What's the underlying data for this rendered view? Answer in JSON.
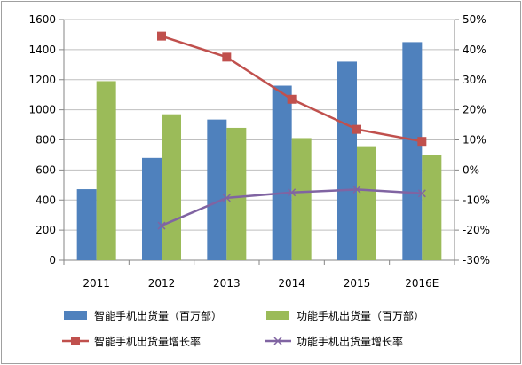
{
  "chart_data": {
    "type": "bar",
    "categories": [
      "2011",
      "2012",
      "2013",
      "2014",
      "2015",
      "2016E"
    ],
    "series": [
      {
        "name": "智能手机出货量（百万部）",
        "kind": "bar",
        "axis": "left",
        "color": "#4f81bd",
        "values": [
          472,
          680,
          935,
          1160,
          1320,
          1450
        ]
      },
      {
        "name": "功能手机出货量（百万部）",
        "kind": "bar",
        "axis": "left",
        "color": "#9bbb59",
        "values": [
          1190,
          970,
          880,
          812,
          758,
          700
        ]
      },
      {
        "name": "智能手机出货量增长率",
        "kind": "line",
        "axis": "right",
        "color": "#c0504d",
        "marker": "square",
        "values": [
          null,
          44.5,
          37.5,
          23.5,
          13.5,
          9.5
        ]
      },
      {
        "name": "功能手机出货量增长率",
        "kind": "line",
        "axis": "right",
        "color": "#8064a2",
        "marker": "x",
        "values": [
          null,
          -18.5,
          -9.3,
          -7.5,
          -6.5,
          -7.8
        ]
      }
    ],
    "y_left": {
      "min": 0,
      "max": 1600,
      "ticks": [
        "0",
        "200",
        "400",
        "600",
        "800",
        "1000",
        "1200",
        "1400",
        "1600"
      ]
    },
    "y_right": {
      "min": -30,
      "max": 50,
      "ticks": [
        "-30%",
        "-20%",
        "-10%",
        "0%",
        "10%",
        "20%",
        "30%",
        "40%",
        "50%"
      ]
    },
    "grid": true,
    "legend_position": "bottom"
  }
}
